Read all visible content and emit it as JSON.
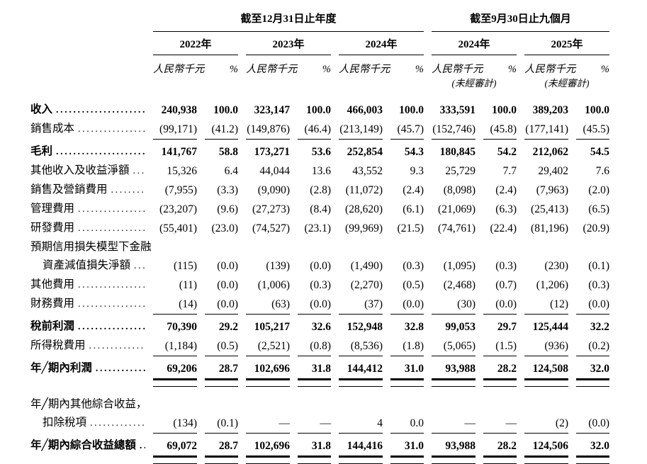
{
  "page": {
    "background": "#ffffff",
    "text_color": "#000000",
    "line_color": "#000000"
  },
  "table": {
    "header": {
      "groups": [
        {
          "title": "截至12月31日止年度"
        },
        {
          "title": "截至9月30日止九個月"
        }
      ],
      "years": [
        {
          "label": "2022年",
          "unaudited": ""
        },
        {
          "label": "2023年",
          "unaudited": ""
        },
        {
          "label": "2024年",
          "unaudited": ""
        },
        {
          "label": "2024年",
          "unaudited": "(未經審計)"
        },
        {
          "label": "2025年",
          "unaudited": "(未經審計)"
        }
      ],
      "unit_label": "人民幣千元",
      "percent_label": "%"
    },
    "rows": [
      {
        "type": "data",
        "label": "收入",
        "bold": true,
        "leader": true,
        "values": [
          "240,938",
          "100.0",
          "323,147",
          "100.0",
          "466,003",
          "100.0",
          "333,591",
          "100.0",
          "389,203",
          "100.0"
        ]
      },
      {
        "type": "data",
        "label": "銷售成本",
        "leader": true,
        "rule_after": "single",
        "values": [
          "(99,171)",
          "(41.2)",
          "(149,876)",
          "(46.4)",
          "(213,149)",
          "(45.7)",
          "(152,746)",
          "(45.8)",
          "(177,141)",
          "(45.5)"
        ]
      },
      {
        "type": "data",
        "label": "毛利",
        "bold": true,
        "leader": true,
        "values": [
          "141,767",
          "58.8",
          "173,271",
          "53.6",
          "252,854",
          "54.3",
          "180,845",
          "54.2",
          "212,062",
          "54.5"
        ]
      },
      {
        "type": "data",
        "label": "其他收入及收益淨額",
        "leader": true,
        "values": [
          "15,326",
          "6.4",
          "44,044",
          "13.6",
          "43,552",
          "9.3",
          "25,729",
          "7.7",
          "29,402",
          "7.6"
        ]
      },
      {
        "type": "data",
        "label": "銷售及營銷費用",
        "leader": true,
        "values": [
          "(7,955)",
          "(3.3)",
          "(9,090)",
          "(2.8)",
          "(11,072)",
          "(2.4)",
          "(8,098)",
          "(2.4)",
          "(7,963)",
          "(2.0)"
        ]
      },
      {
        "type": "data",
        "label": "管理費用",
        "leader": true,
        "values": [
          "(23,207)",
          "(9.6)",
          "(27,273)",
          "(8.4)",
          "(28,620)",
          "(6.1)",
          "(21,069)",
          "(6.3)",
          "(25,413)",
          "(6.5)"
        ]
      },
      {
        "type": "data",
        "label": "研發費用",
        "leader": true,
        "values": [
          "(55,401)",
          "(23.0)",
          "(74,527)",
          "(23.1)",
          "(99,969)",
          "(21.5)",
          "(74,761)",
          "(22.4)",
          "(81,196)",
          "(20.9)"
        ]
      },
      {
        "type": "labelonly",
        "label": "預期信用損失模型下金融"
      },
      {
        "type": "data",
        "label": "資產減值損失淨額",
        "indent": true,
        "leader": true,
        "values": [
          "(115)",
          "(0.0)",
          "(139)",
          "(0.0)",
          "(1,490)",
          "(0.3)",
          "(1,095)",
          "(0.3)",
          "(230)",
          "(0.1)"
        ]
      },
      {
        "type": "data",
        "label": "其他費用",
        "leader": true,
        "values": [
          "(11)",
          "(0.0)",
          "(1,006)",
          "(0.3)",
          "(2,270)",
          "(0.5)",
          "(2,468)",
          "(0.7)",
          "(1,206)",
          "(0.3)"
        ]
      },
      {
        "type": "data",
        "label": "財務費用",
        "leader": true,
        "rule_after": "single",
        "values": [
          "(14)",
          "(0.0)",
          "(63)",
          "(0.0)",
          "(37)",
          "(0.0)",
          "(30)",
          "(0.0)",
          "(12)",
          "(0.0)"
        ]
      },
      {
        "type": "data",
        "label": "稅前利潤",
        "bold": true,
        "leader": true,
        "values": [
          "70,390",
          "29.2",
          "105,217",
          "32.6",
          "152,948",
          "32.8",
          "99,053",
          "29.7",
          "125,444",
          "32.2"
        ]
      },
      {
        "type": "data",
        "label": "所得稅費用",
        "leader": true,
        "rule_after": "single",
        "values": [
          "(1,184)",
          "(0.5)",
          "(2,521)",
          "(0.8)",
          "(8,536)",
          "(1.8)",
          "(5,065)",
          "(1.5)",
          "(936)",
          "(0.2)"
        ]
      },
      {
        "type": "data",
        "label": "年╱期內利潤",
        "bold": true,
        "leader": true,
        "rule_after": "double",
        "space_after": 12,
        "values": [
          "69,206",
          "28.7",
          "102,696",
          "31.8",
          "144,412",
          "31.0",
          "93,988",
          "28.2",
          "124,508",
          "32.0"
        ]
      },
      {
        "type": "labelonly",
        "label": "年╱期內其他綜合收益，"
      },
      {
        "type": "data",
        "label": "扣除稅項",
        "indent": true,
        "leader": true,
        "rule_after": "single",
        "values": [
          "(134)",
          "(0.1)",
          "—",
          "—",
          "4",
          "0.0",
          "—",
          "—",
          "(2)",
          "(0.0)"
        ]
      },
      {
        "type": "data",
        "label": "年╱期內綜合收益總額",
        "bold": true,
        "leader": true,
        "rule_after": "double",
        "values": [
          "69,072",
          "28.7",
          "102,696",
          "31.8",
          "144,416",
          "31.0",
          "93,988",
          "28.2",
          "124,506",
          "32.0"
        ]
      }
    ]
  }
}
